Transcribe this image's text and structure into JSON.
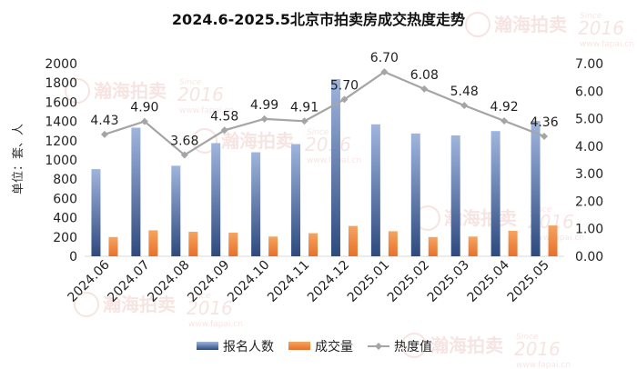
{
  "chart_data": {
    "type": "bar",
    "title": "2024.6-2025.5北京市拍卖房成交热度走势",
    "ylabel": "单位：套、人",
    "y2label": "",
    "categories": [
      "2024.06",
      "2024.07",
      "2024.08",
      "2024.09",
      "2024.10",
      "2024.11",
      "2024.12",
      "2025.01",
      "2025.02",
      "2025.03",
      "2025.04",
      "2025.05"
    ],
    "ylim": [
      0,
      2000
    ],
    "y_ticks": [
      "0",
      "200",
      "400",
      "600",
      "800",
      "1000",
      "1200",
      "1400",
      "1600",
      "1800",
      "2000"
    ],
    "y2lim": [
      0,
      7
    ],
    "y2_ticks": [
      "0.00",
      "1.00",
      "2.00",
      "3.00",
      "4.00",
      "5.00",
      "6.00",
      "7.00"
    ],
    "legend_position": "bottom",
    "grid": false,
    "series": [
      {
        "name": "报名人数",
        "kind": "bar",
        "axis": "left",
        "color": "#4a6496",
        "values": [
          905,
          1335,
          940,
          1175,
          1080,
          1165,
          1840,
          1370,
          1275,
          1255,
          1300,
          1405
        ]
      },
      {
        "name": "成交量",
        "kind": "bar",
        "axis": "left",
        "color": "#ed7d31",
        "values": [
          200,
          270,
          255,
          245,
          205,
          240,
          315,
          260,
          200,
          205,
          265,
          320
        ]
      },
      {
        "name": "热度值",
        "kind": "line",
        "axis": "right",
        "color": "#a5a5a5",
        "values": [
          4.43,
          4.9,
          3.68,
          4.58,
          4.99,
          4.91,
          5.7,
          6.7,
          6.08,
          5.48,
          4.92,
          4.36
        ],
        "labels": [
          "4.43",
          "4.90",
          "3.68",
          "4.58",
          "4.99",
          "4.91",
          "5.70",
          "6.70",
          "6.08",
          "5.48",
          "4.92",
          "4.36"
        ]
      }
    ]
  },
  "watermark": {
    "brand": "瀚海拍卖",
    "since": "Since",
    "year": "2016",
    "site": "www.fapai.cn"
  }
}
